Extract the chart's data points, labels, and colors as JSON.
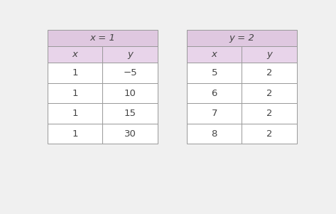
{
  "table1": {
    "title": "x = 1",
    "headers": [
      "x",
      "y"
    ],
    "rows": [
      [
        "1",
        "−5"
      ],
      [
        "1",
        "10"
      ],
      [
        "1",
        "15"
      ],
      [
        "1",
        "30"
      ]
    ]
  },
  "table2": {
    "title": "y = 2",
    "headers": [
      "x",
      "y"
    ],
    "rows": [
      [
        "5",
        "2"
      ],
      [
        "6",
        "2"
      ],
      [
        "7",
        "2"
      ],
      [
        "8",
        "2"
      ]
    ]
  },
  "header_bg": "#dfc8e0",
  "subheader_bg": "#e8d4ea",
  "cell_bg": "#ffffff",
  "border_color": "#999999",
  "text_color": "#444444",
  "title_fontsize": 9.5,
  "header_fontsize": 9.5,
  "cell_fontsize": 9.5,
  "background_color": "#f0f0f0"
}
